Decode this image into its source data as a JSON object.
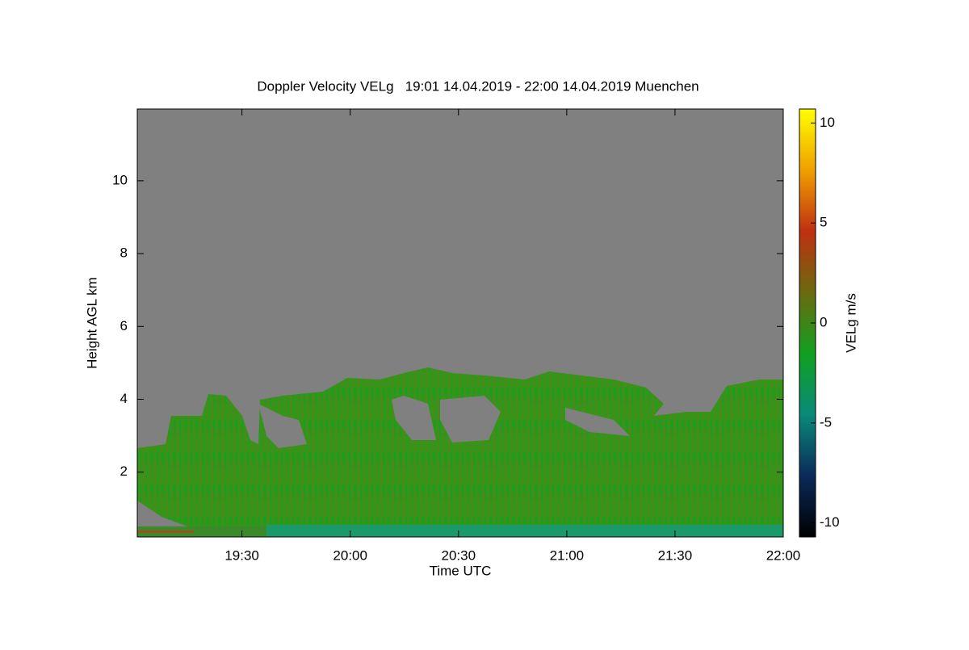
{
  "chart_data": {
    "type": "heatmap",
    "title": "Doppler Velocity VELg   19:01 14.04.2019 - 22:00 14.04.2019 Muenchen",
    "xlabel": "Time UTC",
    "ylabel": "Height AGL km",
    "colorbar_label": "VELg m/s",
    "xlim": [
      1,
      180
    ],
    "xticks": [
      {
        "value": 30,
        "label": "19:30"
      },
      {
        "value": 60,
        "label": "20:00"
      },
      {
        "value": 90,
        "label": "20:30"
      },
      {
        "value": 120,
        "label": "21:00"
      },
      {
        "value": 150,
        "label": "21:30"
      },
      {
        "value": 180,
        "label": "22:00"
      }
    ],
    "ylim": [
      0.22,
      11.97
    ],
    "yticks": [
      2,
      4,
      6,
      8,
      10
    ],
    "clim": [
      -10.7,
      10.7
    ],
    "cticks": [
      -10,
      -5,
      0,
      5,
      10
    ],
    "colormap": [
      "#000000",
      "#0a2a5a",
      "#0a8a7a",
      "#10a020",
      "#6a6a10",
      "#c03010",
      "#f0a000",
      "#ffff00"
    ],
    "background_color": "#808080"
  }
}
